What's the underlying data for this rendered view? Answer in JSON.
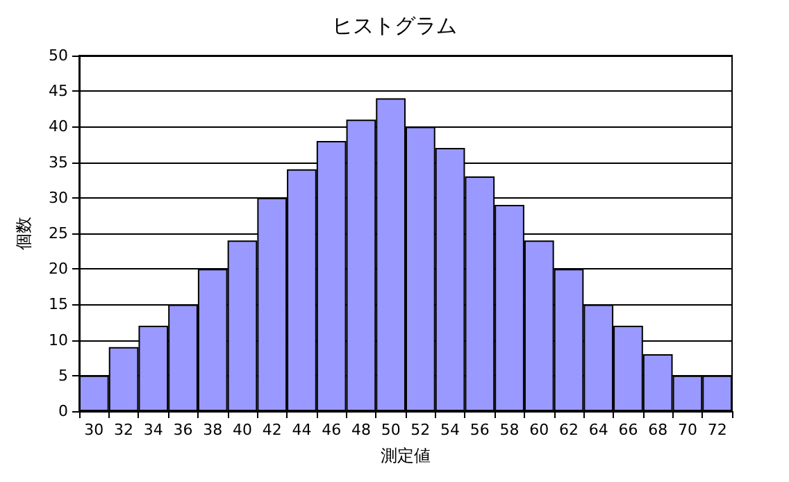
{
  "chart_data": {
    "type": "bar",
    "title": "ヒストグラム",
    "xlabel": "測定値",
    "ylabel": "個数",
    "categories": [
      "30",
      "32",
      "34",
      "36",
      "38",
      "40",
      "42",
      "44",
      "46",
      "48",
      "50",
      "52",
      "54",
      "56",
      "58",
      "60",
      "62",
      "64",
      "66",
      "68",
      "70",
      "72"
    ],
    "values": [
      5,
      9,
      12,
      15,
      20,
      24,
      30,
      34,
      38,
      41,
      44,
      40,
      37,
      33,
      29,
      24,
      20,
      15,
      12,
      8,
      5,
      5
    ],
    "color": "#9999ff",
    "ylim": [
      0,
      50
    ],
    "yticks": [
      0,
      5,
      10,
      15,
      20,
      25,
      30,
      35,
      40,
      45,
      50
    ],
    "grid": "y"
  }
}
